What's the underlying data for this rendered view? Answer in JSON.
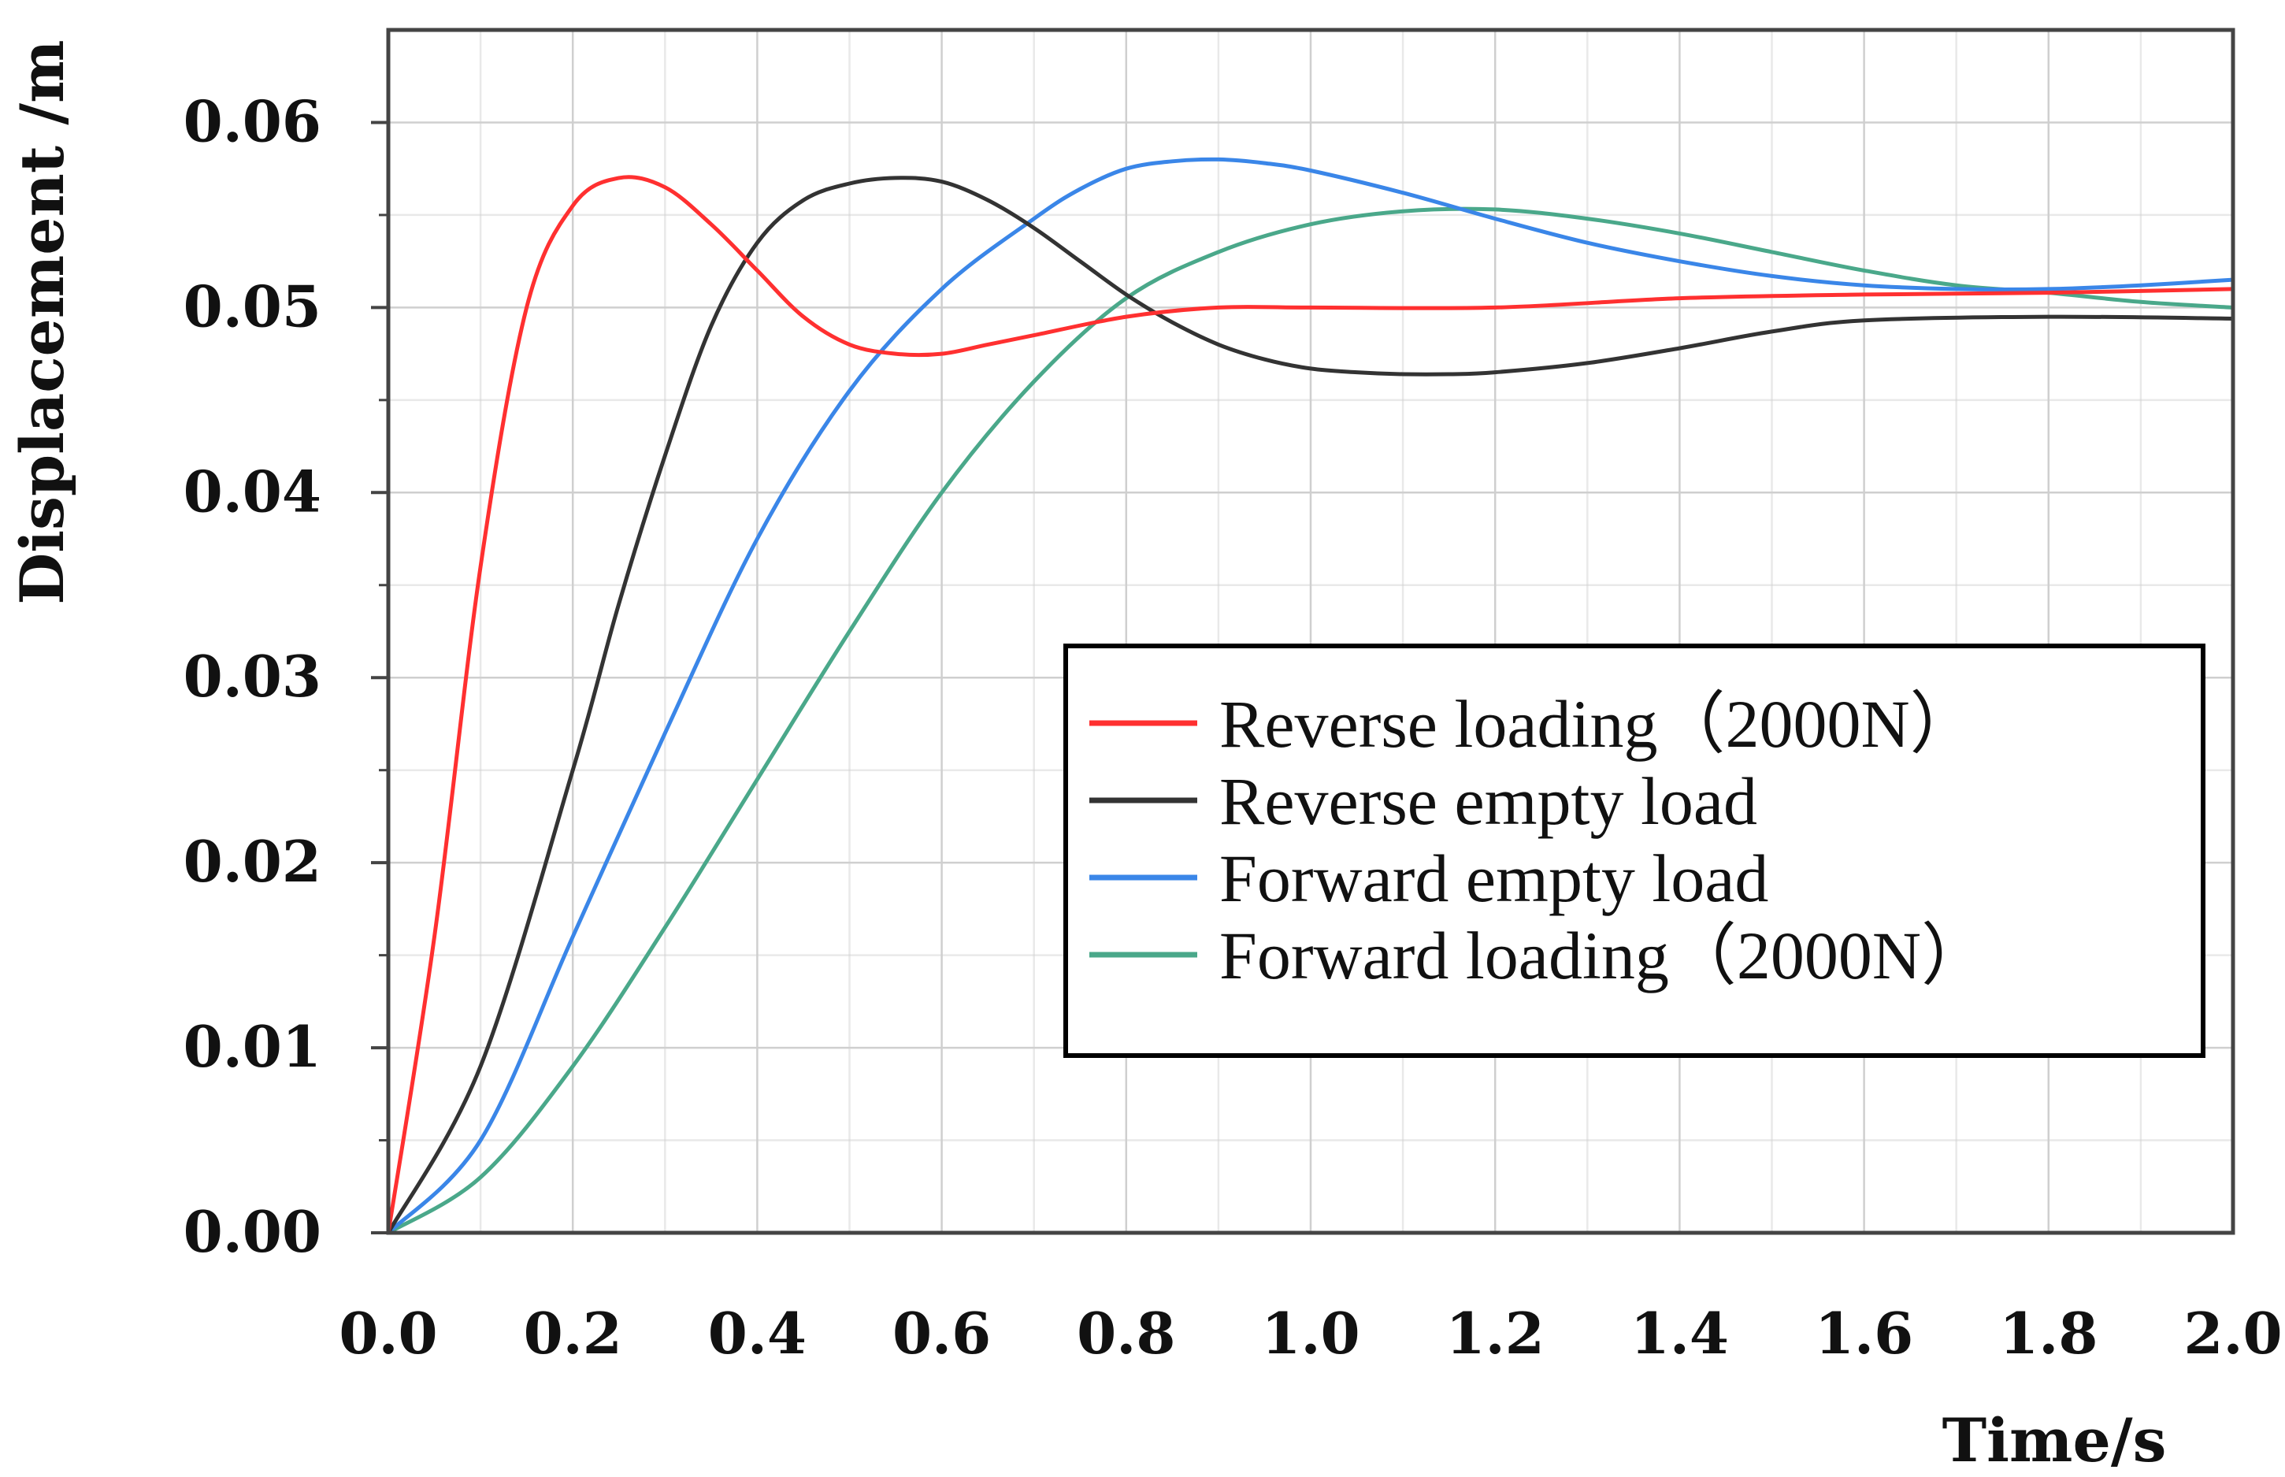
{
  "chart_data": {
    "type": "line",
    "title": "",
    "xlabel": "Time/s",
    "ylabel": "Displacement /m",
    "xlim": [
      0,
      2.0
    ],
    "ylim": [
      0,
      0.065
    ],
    "grid": true,
    "legend_position": "center-right",
    "x_ticks": [
      "0.0",
      "0.2",
      "0.4",
      "0.6",
      "0.8",
      "1.0",
      "1.2",
      "1.4",
      "1.6",
      "1.8",
      "2.0"
    ],
    "y_ticks": [
      "0.00",
      "0.01",
      "0.02",
      "0.03",
      "0.04",
      "0.05",
      "0.06"
    ],
    "series": [
      {
        "name": "Reverse loading（2000N）",
        "color": "#ff3030",
        "x": [
          0,
          0.05,
          0.1,
          0.15,
          0.2,
          0.25,
          0.3,
          0.35,
          0.4,
          0.45,
          0.5,
          0.55,
          0.6,
          0.65,
          0.7,
          0.8,
          0.9,
          1.0,
          1.2,
          1.4,
          1.6,
          1.8,
          2.0
        ],
        "y": [
          0,
          0.016,
          0.036,
          0.05,
          0.0555,
          0.057,
          0.0565,
          0.0545,
          0.052,
          0.0495,
          0.048,
          0.0475,
          0.0475,
          0.048,
          0.0485,
          0.0495,
          0.05,
          0.05,
          0.05,
          0.0505,
          0.0507,
          0.0508,
          0.051
        ]
      },
      {
        "name": "Reverse empty load",
        "color": "#333333",
        "x": [
          0,
          0.1,
          0.2,
          0.25,
          0.3,
          0.35,
          0.4,
          0.45,
          0.5,
          0.55,
          0.6,
          0.65,
          0.7,
          0.75,
          0.8,
          0.85,
          0.9,
          0.95,
          1.0,
          1.05,
          1.1,
          1.15,
          1.2,
          1.3,
          1.4,
          1.5,
          1.6,
          1.8,
          2.0
        ],
        "y": [
          0,
          0.009,
          0.025,
          0.034,
          0.042,
          0.049,
          0.0535,
          0.0558,
          0.0567,
          0.057,
          0.0568,
          0.0558,
          0.0543,
          0.0525,
          0.0507,
          0.0492,
          0.048,
          0.0472,
          0.0467,
          0.0465,
          0.0464,
          0.0464,
          0.0465,
          0.047,
          0.0478,
          0.0487,
          0.0493,
          0.0495,
          0.0494
        ]
      },
      {
        "name": "Forward empty load",
        "color": "#3a86e8",
        "x": [
          0,
          0.1,
          0.2,
          0.3,
          0.4,
          0.5,
          0.6,
          0.7,
          0.75,
          0.8,
          0.85,
          0.9,
          0.95,
          1.0,
          1.1,
          1.2,
          1.3,
          1.4,
          1.5,
          1.6,
          1.7,
          1.8,
          1.9,
          2.0
        ],
        "y": [
          0,
          0.005,
          0.016,
          0.027,
          0.0375,
          0.0455,
          0.051,
          0.0548,
          0.0564,
          0.0575,
          0.0579,
          0.058,
          0.0578,
          0.0574,
          0.0562,
          0.0548,
          0.0535,
          0.0525,
          0.0517,
          0.0512,
          0.051,
          0.051,
          0.0512,
          0.0515
        ]
      },
      {
        "name": "Forward loading（2000N）",
        "color": "#4aa88a",
        "x": [
          0,
          0.1,
          0.2,
          0.3,
          0.4,
          0.5,
          0.6,
          0.7,
          0.8,
          0.9,
          1.0,
          1.1,
          1.2,
          1.3,
          1.4,
          1.5,
          1.6,
          1.7,
          1.8,
          1.9,
          2.0
        ],
        "y": [
          0,
          0.003,
          0.009,
          0.0165,
          0.0245,
          0.0325,
          0.04,
          0.046,
          0.0505,
          0.053,
          0.0545,
          0.0552,
          0.0553,
          0.0548,
          0.054,
          0.053,
          0.052,
          0.0512,
          0.0508,
          0.0503,
          0.05
        ]
      }
    ]
  }
}
